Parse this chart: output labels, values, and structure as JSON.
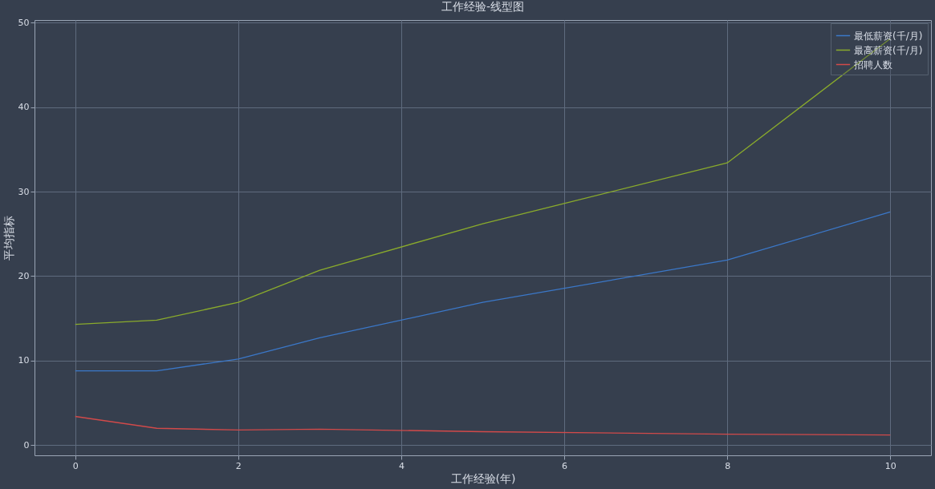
{
  "chart_data": {
    "type": "line",
    "title": "工作经验-线型图",
    "xlabel": "工作经验(年)",
    "ylabel": "平均指标",
    "x": [
      0,
      1,
      2,
      3,
      5,
      8,
      10
    ],
    "series": [
      {
        "name": "最低薪资(千/月)",
        "color": "#3b78c9",
        "values": [
          8.8,
          8.8,
          10.2,
          12.7,
          16.9,
          21.9,
          27.6
        ]
      },
      {
        "name": "最高薪资(千/月)",
        "color": "#8aab2c",
        "values": [
          14.3,
          14.8,
          16.9,
          20.7,
          26.2,
          33.4,
          48.1
        ]
      },
      {
        "name": "招聘人数",
        "color": "#d24a4a",
        "values": [
          3.4,
          2.0,
          1.8,
          1.9,
          1.6,
          1.3,
          1.2
        ]
      }
    ],
    "xlim": [
      -0.5,
      10.5
    ],
    "xticks": [
      0,
      2,
      4,
      6,
      8,
      10
    ],
    "ylim": [
      -1.2,
      50.3
    ],
    "yticks": [
      0,
      10,
      20,
      30,
      40,
      50
    ],
    "grid": true,
    "legend": "top right",
    "marker": "none",
    "line_style": "solid"
  }
}
